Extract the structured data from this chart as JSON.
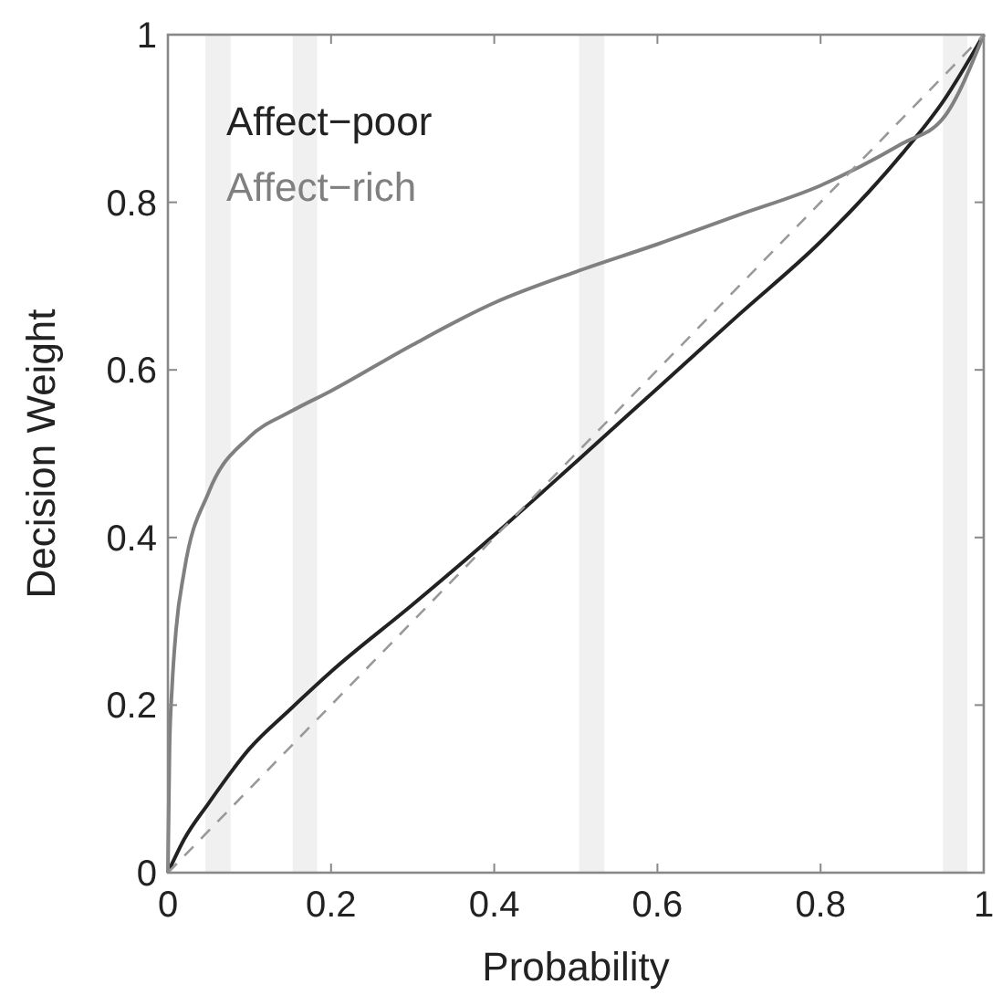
{
  "chart_data": {
    "type": "line",
    "xlabel": "Probability",
    "ylabel": "Decision Weight",
    "xlim": [
      0,
      1
    ],
    "ylim": [
      0,
      1
    ],
    "xticks": [
      0,
      0.2,
      0.4,
      0.6,
      0.8,
      1
    ],
    "yticks": [
      0,
      0.2,
      0.4,
      0.6,
      0.8,
      1
    ],
    "grid": false,
    "legend": "top left",
    "series": [
      {
        "name": "Affect−poor",
        "color": "#222222",
        "x": [
          0,
          0.02,
          0.05,
          0.1,
          0.15,
          0.2,
          0.3,
          0.4,
          0.5,
          0.6,
          0.7,
          0.8,
          0.9,
          0.95,
          1
        ],
        "values": [
          0,
          0.04,
          0.083,
          0.148,
          0.195,
          0.24,
          0.32,
          0.403,
          0.49,
          0.578,
          0.666,
          0.753,
          0.858,
          0.92,
          1
        ]
      },
      {
        "name": "Affect−rich",
        "color": "#808080",
        "x": [
          0,
          0.002,
          0.005,
          0.01,
          0.02,
          0.05,
          0.1,
          0.15,
          0.2,
          0.3,
          0.4,
          0.5,
          0.6,
          0.7,
          0.8,
          0.9,
          0.95,
          1
        ],
        "values": [
          0,
          0.15,
          0.22,
          0.29,
          0.36,
          0.454,
          0.52,
          0.55,
          0.575,
          0.63,
          0.68,
          0.717,
          0.75,
          0.785,
          0.82,
          0.87,
          0.9,
          1
        ]
      },
      {
        "color": "#999999",
        "line_style": "dashed",
        "x": [
          0,
          1
        ],
        "values": [
          0,
          1
        ]
      }
    ],
    "bands": [
      {
        "axis": "x",
        "from": 0.046,
        "to": 0.077,
        "color": "#f0f0f0"
      },
      {
        "axis": "x",
        "from": 0.153,
        "to": 0.183,
        "color": "#f0f0f0"
      },
      {
        "axis": "x",
        "from": 0.504,
        "to": 0.535,
        "color": "#f0f0f0"
      },
      {
        "axis": "x",
        "from": 0.95,
        "to": 0.98,
        "color": "#f0f0f0"
      }
    ]
  }
}
